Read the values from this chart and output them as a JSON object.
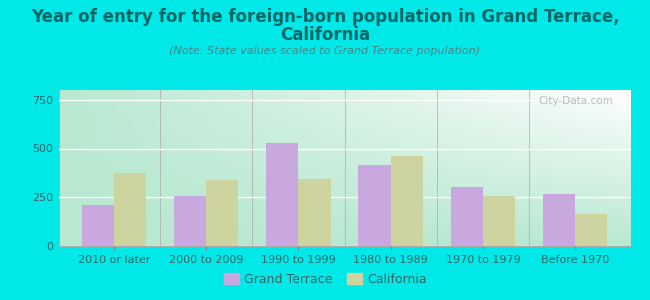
{
  "categories": [
    "2010 or later",
    "2000 to 2009",
    "1990 to 1999",
    "1980 to 1989",
    "1970 to 1979",
    "Before 1970"
  ],
  "grand_terrace": [
    210,
    255,
    530,
    415,
    305,
    265
  ],
  "california": [
    375,
    340,
    345,
    460,
    255,
    165
  ],
  "grand_terrace_color": "#c9a8e0",
  "california_color": "#cdd4a0",
  "title_line1": "Year of entry for the foreign-born population in Grand Terrace,",
  "title_line2": "California",
  "subtitle": "(Note: State values scaled to Grand Terrace population)",
  "legend_grand_terrace": "Grand Terrace",
  "legend_california": "California",
  "watermark": "City-Data.com",
  "ylim": [
    0,
    800
  ],
  "yticks": [
    0,
    250,
    500,
    750
  ],
  "background_color": "#00e8e8",
  "title_color": "#006666",
  "subtitle_color": "#448888",
  "tick_color": "#336666",
  "bar_width": 0.35,
  "title_fontsize": 12,
  "subtitle_fontsize": 8,
  "tick_fontsize": 8,
  "legend_fontsize": 9
}
